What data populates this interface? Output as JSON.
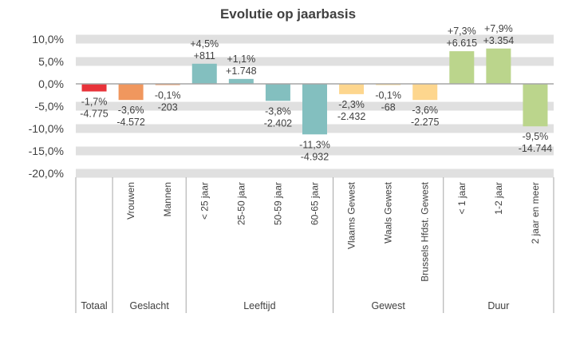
{
  "chart_data": {
    "type": "bar",
    "title": "Evolutie op jaarbasis",
    "xlabel": "",
    "ylabel": "",
    "ylim": [
      -20,
      10
    ],
    "yticks": [
      10,
      5,
      0,
      -5,
      -10,
      -15,
      -20
    ],
    "ytick_labels": [
      "10,0%",
      "5,0%",
      "0,0%",
      "-5,0%",
      "-10,0%",
      "-15,0%",
      "-20,0%"
    ],
    "grid": true,
    "categories": [
      "",
      "Vrouwen",
      "Mannen",
      "< 25 jaar",
      "25-50 jaar",
      "50-59 jaar",
      "60-65 jaar",
      "Vlaams Gewest",
      "Waals Gewest",
      "Brussels Hfdst. Gewest",
      "< 1 jaar",
      "1-2 jaar",
      "2 jaar en meer"
    ],
    "values": [
      -1.7,
      -3.6,
      -0.1,
      4.5,
      1.1,
      -3.8,
      -11.3,
      -2.3,
      -0.1,
      -3.6,
      7.3,
      7.9,
      -9.5
    ],
    "pct_labels": [
      "-1,7%",
      "-3,6%",
      "-0,1%",
      "+4,5%",
      "+1,1%",
      "-3,8%",
      "-11,3%",
      "-2,3%",
      "-0,1%",
      "-3,6%",
      "+7,3%",
      "+7,9%",
      "-9,5%"
    ],
    "abs_labels": [
      "-4.775",
      "-4.572",
      "-203",
      "+811",
      "+1.748",
      "-2.402",
      "-4.932",
      "-2.432",
      "-68",
      "-2.275",
      "+6.615",
      "+3.354",
      "-14.744"
    ],
    "colors": [
      "#E8333A",
      "#F0975E",
      "#F0975E",
      "#83BFBF",
      "#83BFBF",
      "#83BFBF",
      "#83BFBF",
      "#FDD68E",
      "#FDD68E",
      "#FDD68E",
      "#BBD58C",
      "#BBD58C",
      "#BBD58C"
    ],
    "groups": [
      {
        "label": "Totaal",
        "count": 1
      },
      {
        "label": "Geslacht",
        "count": 2
      },
      {
        "label": "Leeftijd",
        "count": 4
      },
      {
        "label": "Gewest",
        "count": 3
      },
      {
        "label": "Duur",
        "count": 3
      }
    ]
  }
}
